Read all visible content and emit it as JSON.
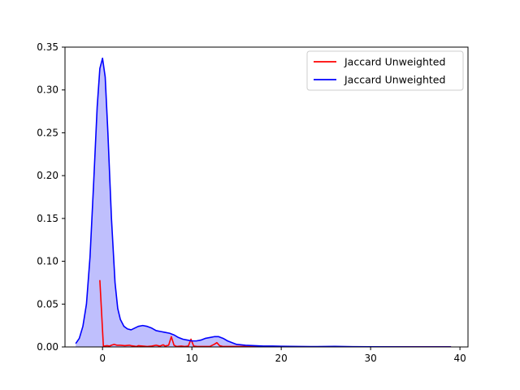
{
  "chart_data": {
    "type": "line",
    "title": "",
    "xlabel": "",
    "ylabel": "",
    "xlim": [
      -4.2,
      40.9
    ],
    "ylim": [
      0,
      0.35
    ],
    "xticks": [
      0,
      10,
      20,
      30,
      40
    ],
    "yticks": [
      0.0,
      0.05,
      0.1,
      0.15,
      0.2,
      0.25,
      0.3,
      0.35
    ],
    "ytick_labels": [
      "0.00",
      "0.05",
      "0.10",
      "0.15",
      "0.20",
      "0.25",
      "0.30",
      "0.35"
    ],
    "grid": false,
    "legend_placement": "top-right",
    "series": [
      {
        "name": "Jaccard Unweighted",
        "color": "#ff0000",
        "fill": false,
        "x": [
          -0.3,
          0.1,
          0.2,
          0.5,
          0.8,
          1.0,
          1.3,
          1.6,
          2.0,
          2.5,
          3.0,
          3.2,
          3.5,
          3.8,
          4.0,
          4.5,
          5.0,
          5.5,
          6.0,
          6.4,
          6.8,
          7.0,
          7.4,
          7.7,
          8.0,
          8.3,
          8.8,
          9.2,
          9.6,
          9.9,
          10.2,
          10.6,
          11.0,
          11.5,
          12.0,
          12.5,
          12.8,
          13.1,
          13.5,
          14.0,
          15.0,
          16.0,
          18.0,
          20.0,
          25.0,
          30.0,
          35.0,
          39.0
        ],
        "y": [
          0.078,
          0.0,
          0.001,
          0.0015,
          0.001,
          0.002,
          0.003,
          0.002,
          0.002,
          0.0015,
          0.002,
          0.0015,
          0.001,
          0.0005,
          0.0015,
          0.001,
          0.0005,
          0.001,
          0.002,
          0.001,
          0.0025,
          0.001,
          0.002,
          0.012,
          0.002,
          0.0005,
          0.001,
          0.0005,
          0.001,
          0.009,
          0.001,
          0.0005,
          0.0005,
          0.0005,
          0.0005,
          0.003,
          0.005,
          0.0015,
          0.0005,
          0.0005,
          0.0005,
          0.0005,
          0.0003,
          0.0003,
          0.0002,
          0.0002,
          0.0002,
          0.0002
        ]
      },
      {
        "name": "Jaccard Unweighted",
        "color": "#0000ff",
        "fill": true,
        "fill_color": "#bfbffd",
        "x": [
          -3.0,
          -2.6,
          -2.2,
          -1.8,
          -1.4,
          -1.0,
          -0.6,
          -0.3,
          0.0,
          0.3,
          0.6,
          1.0,
          1.4,
          1.7,
          2.0,
          2.4,
          2.8,
          3.2,
          3.6,
          4.0,
          4.5,
          5.0,
          5.5,
          6.0,
          6.5,
          7.0,
          7.5,
          8.0,
          8.5,
          9.0,
          9.5,
          10.0,
          10.5,
          11.0,
          11.5,
          12.0,
          12.5,
          13.0,
          13.5,
          14.0,
          14.5,
          15.0,
          16.0,
          17.0,
          18.0,
          19.0,
          20.0,
          22.0,
          24.0,
          26.0,
          28.0,
          30.0,
          35.0,
          39.0
        ],
        "y": [
          0.004,
          0.01,
          0.024,
          0.05,
          0.105,
          0.19,
          0.28,
          0.325,
          0.337,
          0.315,
          0.25,
          0.15,
          0.075,
          0.045,
          0.032,
          0.024,
          0.021,
          0.02,
          0.022,
          0.024,
          0.025,
          0.024,
          0.022,
          0.019,
          0.018,
          0.017,
          0.016,
          0.014,
          0.011,
          0.009,
          0.008,
          0.007,
          0.007,
          0.008,
          0.01,
          0.011,
          0.012,
          0.012,
          0.01,
          0.007,
          0.005,
          0.003,
          0.002,
          0.0015,
          0.001,
          0.001,
          0.0008,
          0.0005,
          0.0004,
          0.0007,
          0.0003,
          0.0002,
          0.0001,
          0.0001
        ]
      }
    ]
  }
}
